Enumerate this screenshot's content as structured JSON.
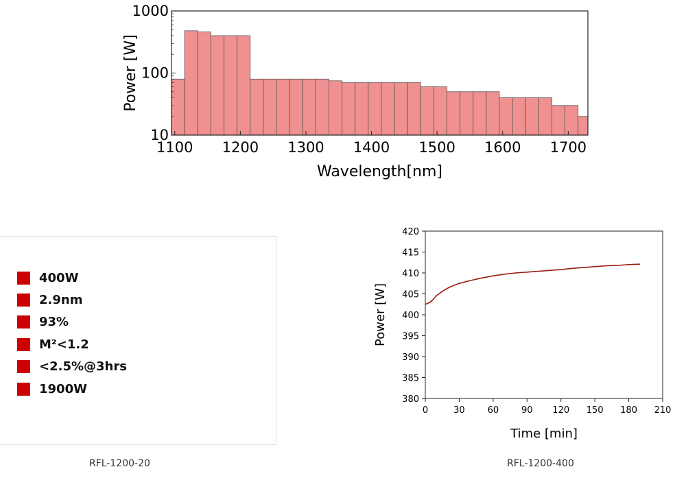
{
  "chart_data": [
    {
      "id": "spectrum",
      "type": "bar",
      "title": "",
      "xlabel": "Wavelength[nm]",
      "ylabel": "Power [W]",
      "xscale": "linear",
      "yscale": "log",
      "xlim": [
        1095,
        1730
      ],
      "ylim": [
        10,
        1000
      ],
      "xticks": [
        1100,
        1200,
        1300,
        1400,
        1500,
        1600,
        1700
      ],
      "yticks": [
        10,
        100,
        1000
      ],
      "bar_color": "#f09090",
      "bar_edge_color": "#555555",
      "bins": [
        {
          "from": 1095,
          "to": 1115,
          "value": 80
        },
        {
          "from": 1115,
          "to": 1135,
          "value": 480
        },
        {
          "from": 1135,
          "to": 1155,
          "value": 460
        },
        {
          "from": 1155,
          "to": 1175,
          "value": 400
        },
        {
          "from": 1175,
          "to": 1195,
          "value": 400
        },
        {
          "from": 1195,
          "to": 1215,
          "value": 400
        },
        {
          "from": 1215,
          "to": 1235,
          "value": 80
        },
        {
          "from": 1235,
          "to": 1255,
          "value": 80
        },
        {
          "from": 1255,
          "to": 1275,
          "value": 80
        },
        {
          "from": 1275,
          "to": 1295,
          "value": 80
        },
        {
          "from": 1295,
          "to": 1315,
          "value": 80
        },
        {
          "from": 1315,
          "to": 1335,
          "value": 80
        },
        {
          "from": 1335,
          "to": 1355,
          "value": 75
        },
        {
          "from": 1355,
          "to": 1375,
          "value": 70
        },
        {
          "from": 1375,
          "to": 1395,
          "value": 70
        },
        {
          "from": 1395,
          "to": 1415,
          "value": 70
        },
        {
          "from": 1415,
          "to": 1435,
          "value": 70
        },
        {
          "from": 1435,
          "to": 1455,
          "value": 70
        },
        {
          "from": 1455,
          "to": 1475,
          "value": 70
        },
        {
          "from": 1475,
          "to": 1495,
          "value": 60
        },
        {
          "from": 1495,
          "to": 1515,
          "value": 60
        },
        {
          "from": 1515,
          "to": 1535,
          "value": 50
        },
        {
          "from": 1535,
          "to": 1555,
          "value": 50
        },
        {
          "from": 1555,
          "to": 1575,
          "value": 50
        },
        {
          "from": 1575,
          "to": 1595,
          "value": 50
        },
        {
          "from": 1595,
          "to": 1615,
          "value": 40
        },
        {
          "from": 1615,
          "to": 1635,
          "value": 40
        },
        {
          "from": 1635,
          "to": 1655,
          "value": 40
        },
        {
          "from": 1655,
          "to": 1675,
          "value": 40
        },
        {
          "from": 1675,
          "to": 1695,
          "value": 30
        },
        {
          "from": 1695,
          "to": 1715,
          "value": 30
        },
        {
          "from": 1715,
          "to": 1735,
          "value": 20
        }
      ]
    },
    {
      "id": "stability",
      "type": "line",
      "title": "",
      "xlabel": "Time [min]",
      "ylabel": "Power [W]",
      "xlim": [
        0,
        210
      ],
      "ylim": [
        380,
        420
      ],
      "xticks": [
        0,
        30,
        60,
        90,
        120,
        150,
        180,
        210
      ],
      "yticks": [
        380,
        385,
        390,
        395,
        400,
        405,
        410,
        415,
        420
      ],
      "grid": false,
      "line_color": "#9b1c12",
      "series": [
        {
          "name": "Power",
          "x": [
            0,
            2,
            4,
            6,
            8,
            10,
            12,
            15,
            20,
            25,
            30,
            40,
            50,
            60,
            70,
            80,
            90,
            100,
            110,
            120,
            130,
            140,
            150,
            160,
            170,
            180,
            190
          ],
          "y": [
            402.5,
            402.7,
            403.0,
            403.4,
            404.0,
            404.6,
            405.0,
            405.6,
            406.4,
            407.0,
            407.5,
            408.2,
            408.8,
            409.3,
            409.7,
            410.0,
            410.2,
            410.4,
            410.6,
            410.8,
            411.1,
            411.3,
            411.5,
            411.7,
            411.8,
            412.0,
            412.1
          ]
        }
      ]
    }
  ],
  "specs": [
    "400W",
    "2.9nm",
    "93%",
    "M²<1.2",
    "<2.5%@3hrs",
    "1900W"
  ],
  "spec_bullet_color": "#cc0000",
  "captions": {
    "left": "RFL-1200-20",
    "right": "RFL-1200-400"
  }
}
